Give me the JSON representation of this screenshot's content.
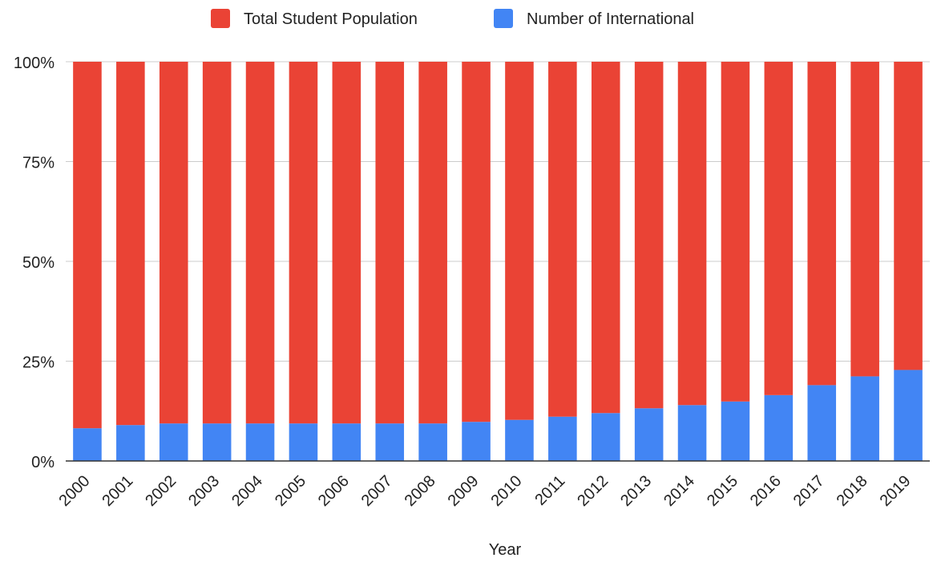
{
  "chart_data": {
    "type": "bar",
    "stacked": "percent",
    "categories": [
      "2000",
      "2001",
      "2002",
      "2003",
      "2004",
      "2005",
      "2006",
      "2007",
      "2008",
      "2009",
      "2010",
      "2011",
      "2012",
      "2013",
      "2014",
      "2015",
      "2016",
      "2017",
      "2018",
      "2019"
    ],
    "series": [
      {
        "name": "Number of International",
        "color": "#4285f4",
        "values": [
          8.2,
          9.0,
          9.4,
          9.4,
          9.4,
          9.4,
          9.4,
          9.4,
          9.4,
          9.8,
          10.3,
          11.1,
          12.0,
          13.2,
          14.0,
          14.9,
          16.5,
          19.0,
          21.2,
          22.8
        ]
      },
      {
        "name": "Total Student Population",
        "color": "#ea4335",
        "values": [
          91.8,
          91.0,
          90.6,
          90.6,
          90.6,
          90.6,
          90.6,
          90.6,
          90.6,
          90.2,
          89.7,
          88.9,
          88.0,
          86.8,
          86.0,
          85.1,
          83.5,
          81.0,
          78.8,
          77.2
        ]
      }
    ],
    "legend": {
      "position": "top",
      "entries": [
        {
          "label": "Total Student Population",
          "color": "#ea4335"
        },
        {
          "label": "Number of International",
          "color": "#4285f4"
        }
      ]
    },
    "xlabel": "Year",
    "ylabel": "",
    "ylim": [
      0,
      100
    ],
    "yticks": [
      "0%",
      "25%",
      "50%",
      "75%",
      "100%"
    ],
    "grid": true
  }
}
